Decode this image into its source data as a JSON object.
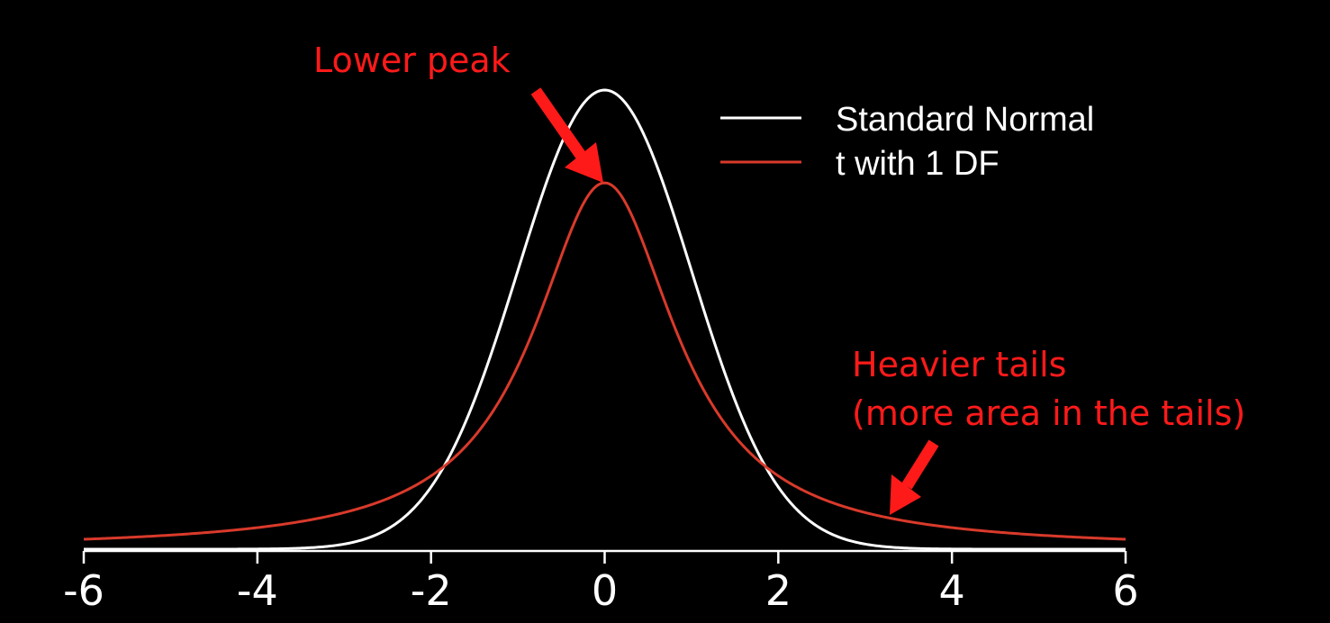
{
  "chart_data": {
    "type": "line",
    "title": "",
    "xlabel": "",
    "ylabel": "",
    "xlim": [
      -6,
      6
    ],
    "ylim": [
      0,
      0.4
    ],
    "x_ticks": [
      "-6",
      "-4",
      "-2",
      "0",
      "2",
      "4",
      "6"
    ],
    "x_tick_values": [
      -6,
      -4,
      -2,
      0,
      2,
      4,
      6
    ],
    "grid": false,
    "legend_position": "top-right",
    "series": [
      {
        "name": "Standard Normal",
        "color": "#ffffff",
        "distribution": "normal",
        "peak": 0.399
      },
      {
        "name": "t with 1 DF",
        "color": "#d93a2b",
        "distribution": "t",
        "df": 1,
        "peak": 0.318
      }
    ],
    "annotations": [
      {
        "name": "lower-peak",
        "text": "Lower peak",
        "color": "#ff1a1a",
        "points_to": {
          "x": 0,
          "y": 0.318
        }
      },
      {
        "name": "heavier-tails",
        "lines": [
          "Heavier tails",
          "(more area in the tails)"
        ],
        "color": "#ff1a1a",
        "points_to": {
          "x": 3.3,
          "y": 0.03
        }
      }
    ]
  }
}
